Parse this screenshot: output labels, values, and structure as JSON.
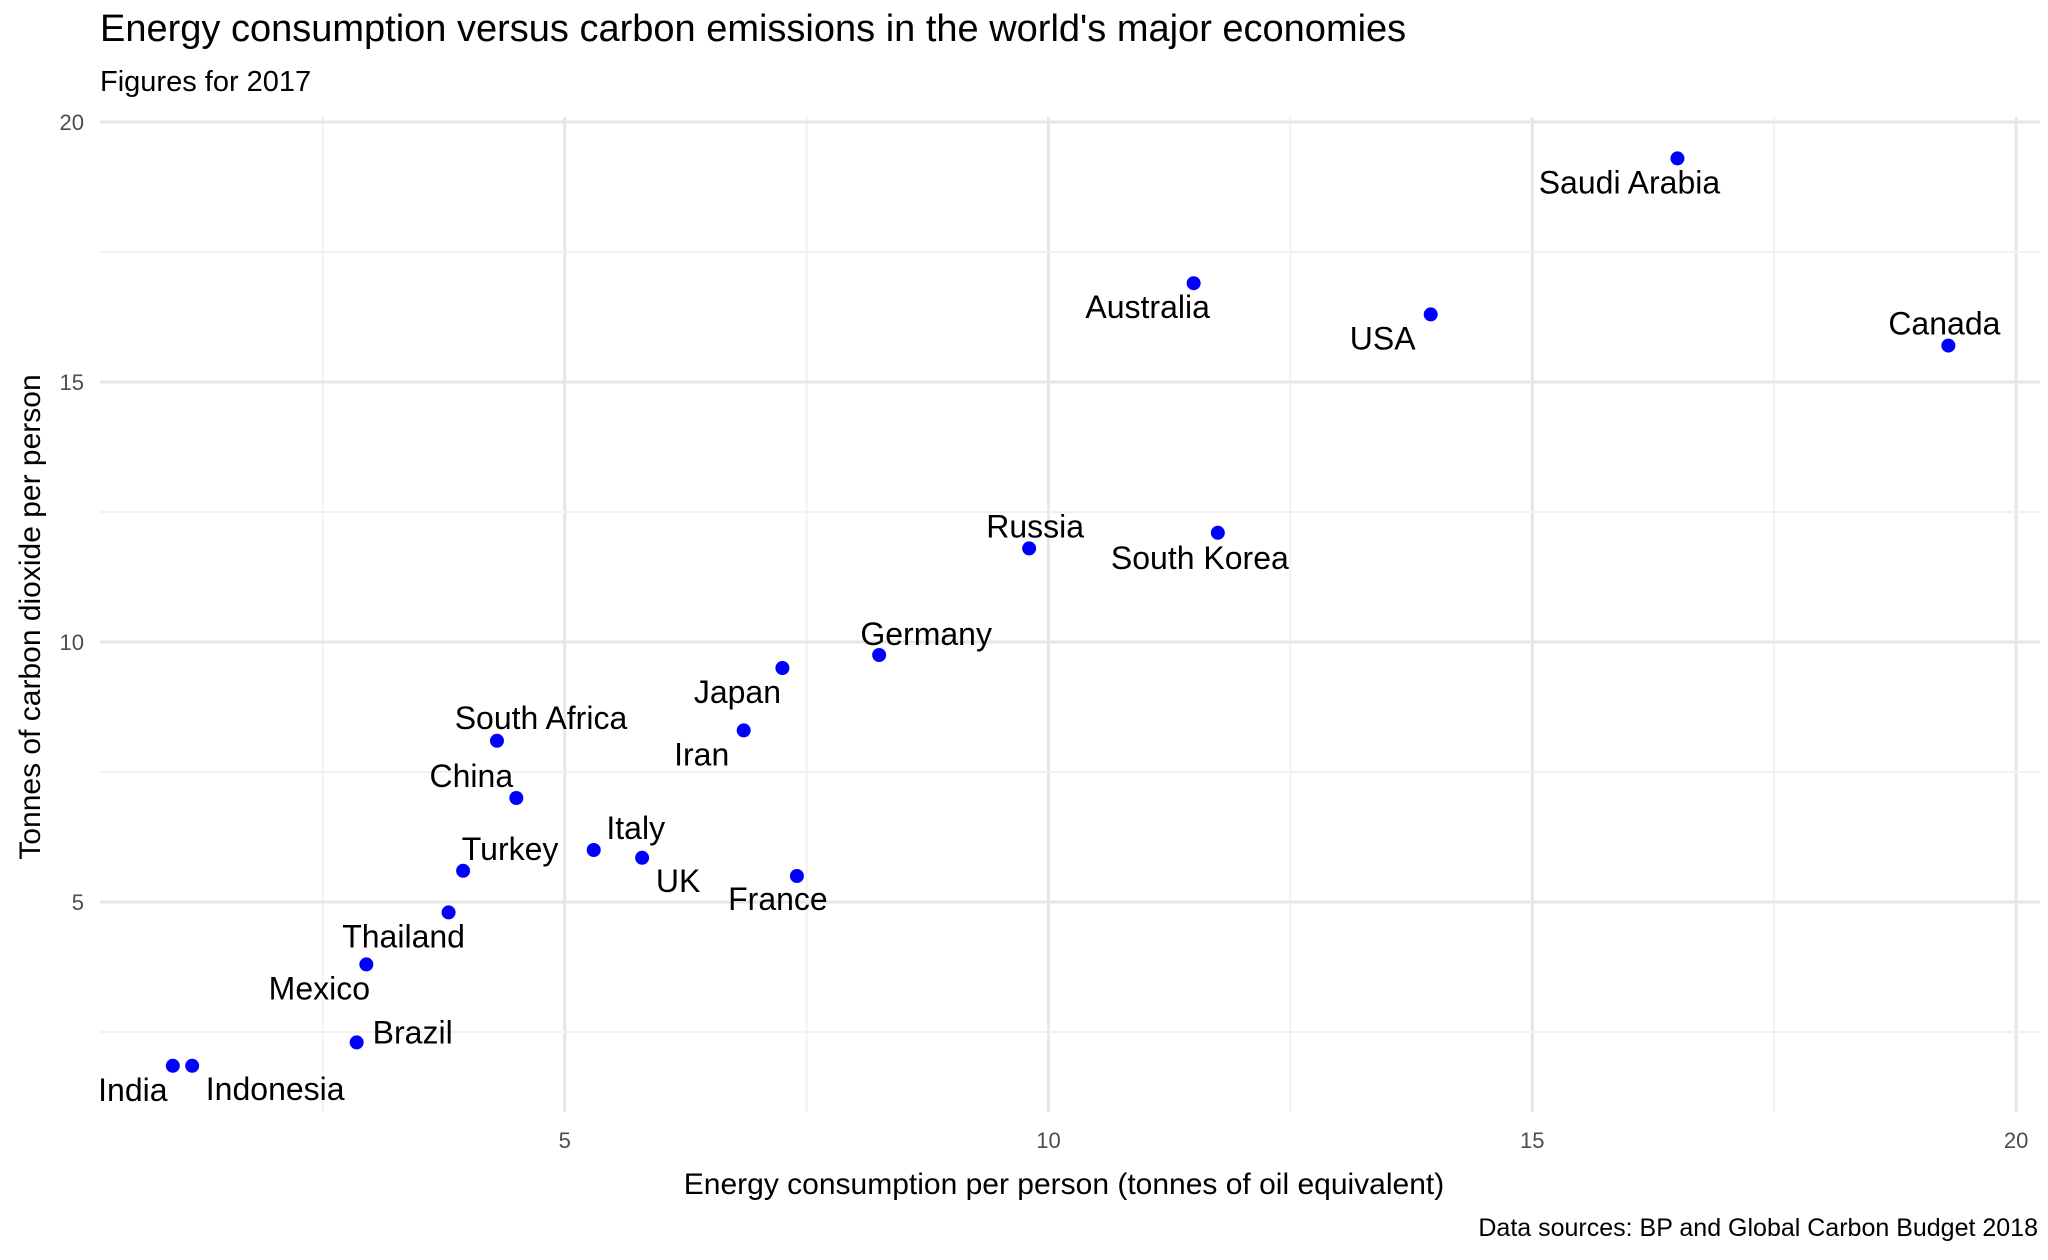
{
  "chart_data": {
    "type": "scatter",
    "title": "Energy consumption versus carbon emissions in the world's major economies",
    "subtitle": "Figures for 2017",
    "caption": "Data sources: BP and Global Carbon Budget 2018",
    "xlabel": "Energy consumption per person (tonnes of oil equivalent)",
    "ylabel": "Tonnes of carbon dioxide per person",
    "xlim": [
      0.5,
      20.4
    ],
    "ylim": [
      0.75,
      20.1
    ],
    "x_ticks": [
      5,
      10,
      15,
      20
    ],
    "x_tick_labels": [
      "5",
      "10",
      "15",
      "20"
    ],
    "y_ticks": [
      5,
      10,
      15,
      20
    ],
    "y_tick_labels": [
      "5",
      "10",
      "15",
      "20"
    ],
    "grid": true,
    "point_color": "#0000ff",
    "points": [
      {
        "label": "Saudi Arabia",
        "x": 16.5,
        "y": 19.3
      },
      {
        "label": "Australia",
        "x": 11.5,
        "y": 16.9
      },
      {
        "label": "USA",
        "x": 13.95,
        "y": 16.3
      },
      {
        "label": "Canada",
        "x": 19.3,
        "y": 15.7
      },
      {
        "label": "Russia",
        "x": 9.8,
        "y": 11.8
      },
      {
        "label": "South Korea",
        "x": 11.75,
        "y": 12.1
      },
      {
        "label": "Germany",
        "x": 8.25,
        "y": 9.75
      },
      {
        "label": "Japan",
        "x": 7.25,
        "y": 9.5
      },
      {
        "label": "Iran",
        "x": 6.85,
        "y": 8.3
      },
      {
        "label": "South Africa",
        "x": 4.3,
        "y": 8.1
      },
      {
        "label": "China",
        "x": 4.5,
        "y": 7.0
      },
      {
        "label": "Italy",
        "x": 5.3,
        "y": 6.0
      },
      {
        "label": "UK",
        "x": 5.8,
        "y": 5.85
      },
      {
        "label": "France",
        "x": 7.4,
        "y": 5.5
      },
      {
        "label": "Turkey",
        "x": 3.95,
        "y": 5.6
      },
      {
        "label": "Thailand",
        "x": 3.8,
        "y": 4.8
      },
      {
        "label": "Mexico",
        "x": 2.95,
        "y": 3.8
      },
      {
        "label": "Brazil",
        "x": 2.85,
        "y": 2.3
      },
      {
        "label": "India",
        "x": 0.95,
        "y": 1.85
      },
      {
        "label": "Indonesia",
        "x": 1.15,
        "y": 1.85
      }
    ]
  }
}
